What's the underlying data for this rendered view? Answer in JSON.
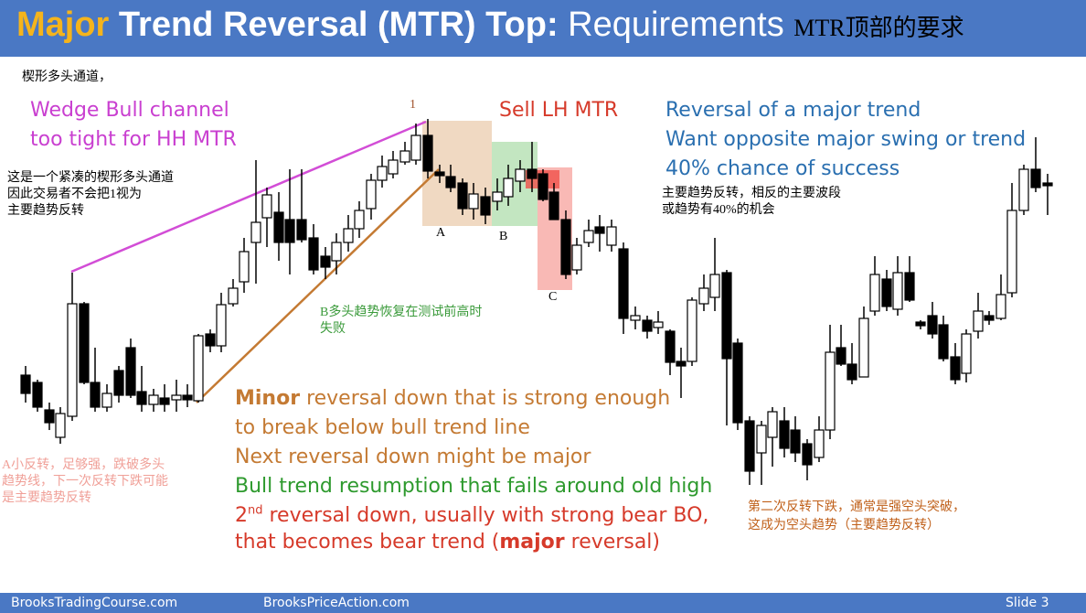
{
  "header": {
    "title": {
      "major": "Major",
      "rest": "Trend Reversal (MTR) Top:",
      "requirements": "Requirements",
      "chinese": "MTR顶部的要求"
    }
  },
  "annotations": {
    "wedge_cn": "楔形多头通道，",
    "wedge_en": [
      "Wedge Bull channel",
      "too tight for HH MTR"
    ],
    "wedge_note_cn": [
      "这是一个紧凑的楔形多头通道",
      "因此交易者不会把1视为",
      "主要趋势反转"
    ],
    "point_1": "1",
    "sell": "Sell LH MTR",
    "reversal_en": [
      "Reversal of a major trend",
      "Want opposite major swing or trend",
      "40% chance of success"
    ],
    "reversal_cn": [
      "主要趋势反转，相反的主要波段",
      "或趋势有40%的机会"
    ],
    "point_a": "A",
    "point_b": "B",
    "point_c": "C",
    "b_note_cn": [
      "B多头趋势恢复在测试前高时",
      "失败"
    ],
    "a_note_cn": [
      "A小反转，足够强，跌破多头",
      "趋势线，下一次反转下跌可能",
      "是主要趋势反转"
    ],
    "second_cn": [
      "第二次反转下跌，通常是强空头突破，",
      "这成为空头趋势（主要趋势反转）"
    ]
  },
  "main_text": {
    "line1": {
      "bold": "Minor",
      "rest": "reversal down that is strong enough"
    },
    "line2": "to break below bull trend line",
    "line3": "Next reversal down might be major",
    "line4": "Bull trend resumption that fails around old high",
    "line5": {
      "num": "2",
      "sup": "nd",
      "rest": "reversal down, usually with strong bear BO,"
    },
    "line6": {
      "start": "that becomes bear trend (",
      "bold": "major",
      "end": "reversal)"
    }
  },
  "footer": {
    "left": "BrooksTradingCourse.com",
    "middle": "BrooksPriceAction.com",
    "slide": "Slide 3"
  }
}
